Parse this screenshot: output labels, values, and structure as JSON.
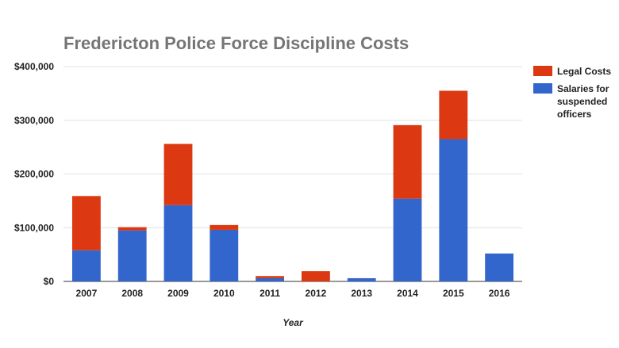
{
  "chart_data": {
    "type": "bar",
    "stacked": true,
    "title": "Fredericton Police Force Discipline Costs",
    "xlabel": "Year",
    "ylabel": "",
    "ylim": [
      0,
      400000
    ],
    "yticks": [
      0,
      100000,
      200000,
      300000,
      400000
    ],
    "ytick_labels": [
      "$0",
      "$100,000",
      "$200,000",
      "$300,000",
      "$400,000"
    ],
    "categories": [
      "2007",
      "2008",
      "2009",
      "2010",
      "2011",
      "2012",
      "2013",
      "2014",
      "2015",
      "2016"
    ],
    "series": [
      {
        "name": "Salaries for suspended officers",
        "color": "#3366cc",
        "values": [
          58000,
          95000,
          142000,
          96000,
          6000,
          0,
          6000,
          154000,
          265000,
          52000
        ]
      },
      {
        "name": "Legal Costs",
        "color": "#dc3912",
        "values": [
          101000,
          6000,
          114000,
          9000,
          4000,
          19000,
          0,
          137000,
          90000,
          0
        ]
      }
    ],
    "legend_order": [
      "Legal Costs",
      "Salaries for suspended officers"
    ],
    "legend_position": "right",
    "grid": true
  }
}
